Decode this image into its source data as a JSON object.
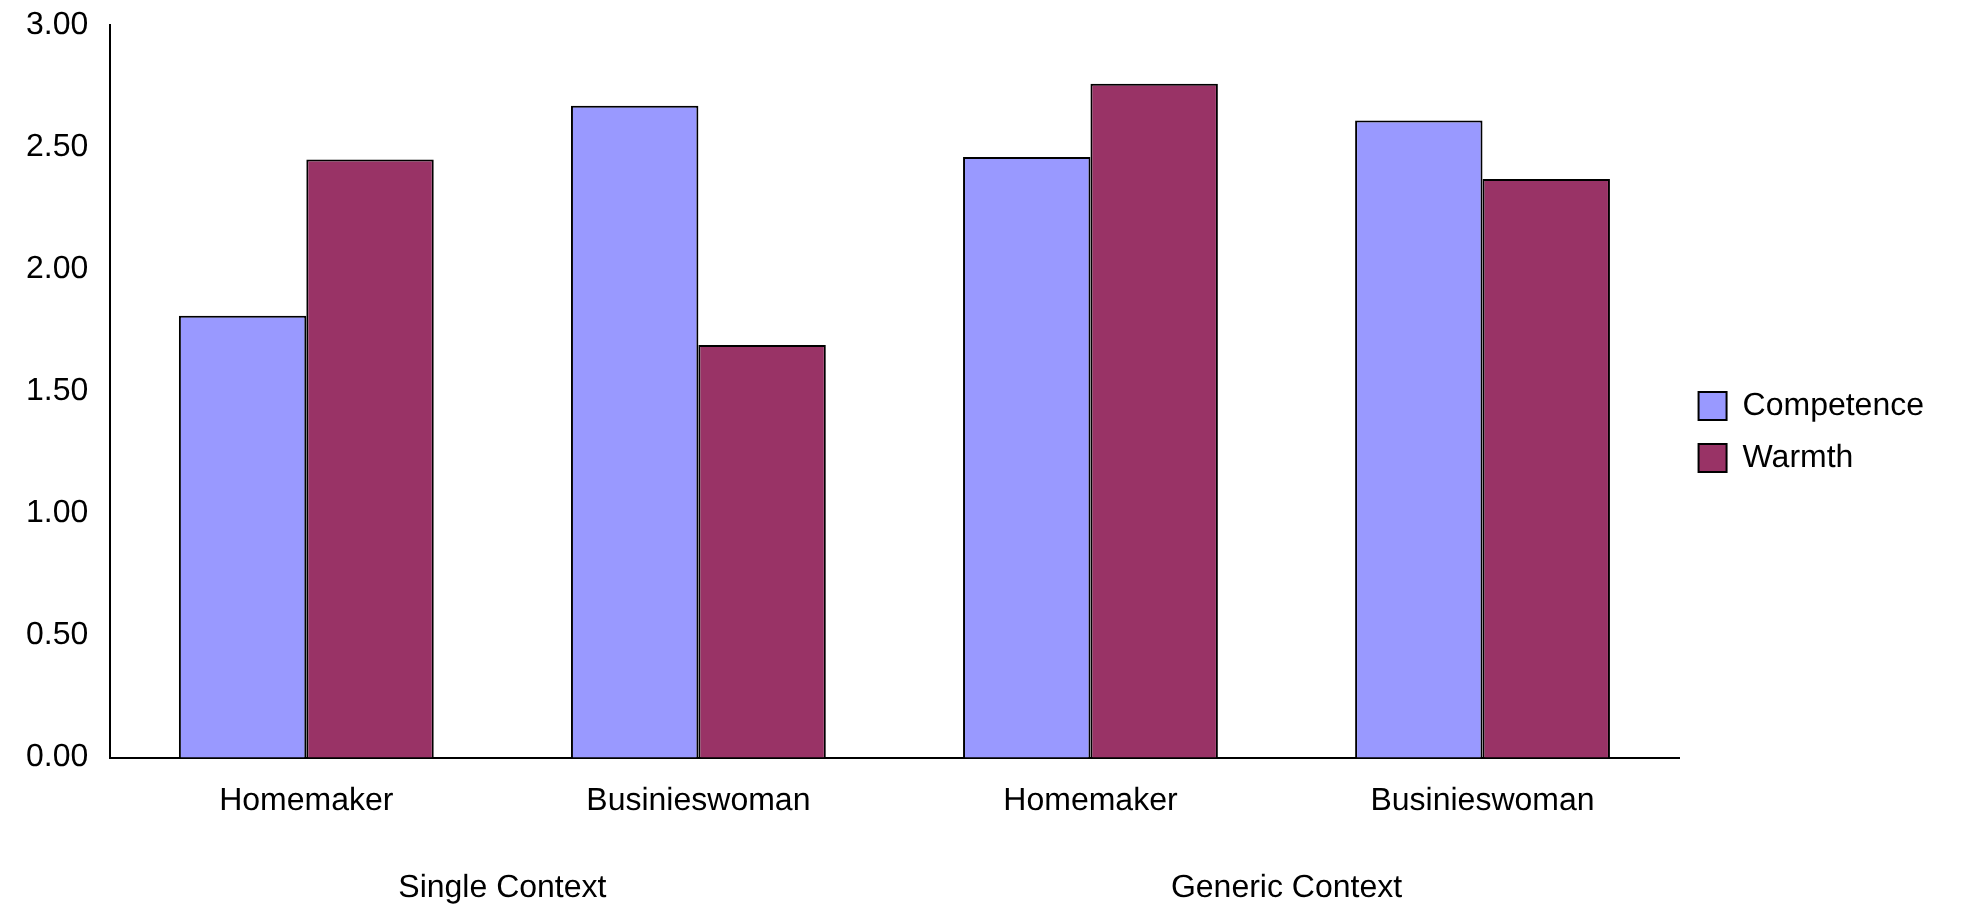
{
  "chart_data": {
    "type": "bar",
    "categories": [
      "Homemaker",
      "Businieswoman",
      "Homemaker",
      "Businieswoman"
    ],
    "series": [
      {
        "name": "Competence",
        "color": "#9999ff",
        "values": [
          1.81,
          2.67,
          2.46,
          2.61
        ]
      },
      {
        "name": "Warmth",
        "color": "#993366",
        "values": [
          2.45,
          1.69,
          2.76,
          2.37
        ]
      }
    ],
    "ylim": [
      0,
      3
    ],
    "yticks": [
      {
        "value": 0,
        "label": "0.00"
      },
      {
        "value": 0.5,
        "label": "0.50"
      },
      {
        "value": 1,
        "label": "1.00"
      },
      {
        "value": 1.5,
        "label": "1.50"
      },
      {
        "value": 2,
        "label": "2.00"
      },
      {
        "value": 2.5,
        "label": "2.50"
      },
      {
        "value": 3,
        "label": "3.00"
      }
    ],
    "annotations": [
      "Single Context",
      "Generic Context"
    ],
    "grid": false,
    "legend": "right"
  }
}
